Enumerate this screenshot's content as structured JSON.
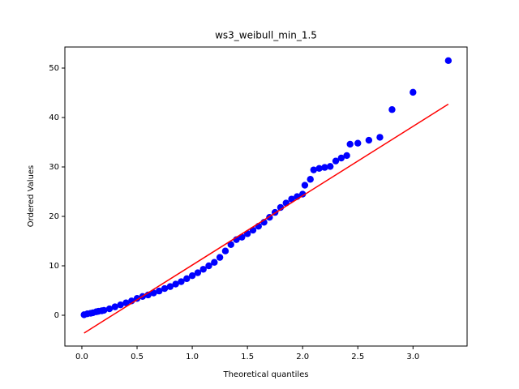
{
  "chart_data": {
    "type": "scatter",
    "title": "ws3_weibull_min_1.5",
    "x_label": "Theoretical quantiles",
    "y_label": "Ordered Values",
    "xlim": [
      -0.154,
      3.49
    ],
    "ylim": [
      -6.23,
      54.26
    ],
    "xticks": [
      {
        "value": 0,
        "label": "0.0"
      },
      0.5,
      {
        "value": 1,
        "label": "1.0"
      },
      1.5,
      {
        "value": 2,
        "label": "2.0"
      },
      2.5,
      {
        "value": 3,
        "label": "3.0"
      }
    ],
    "yticks": [
      0,
      10,
      20,
      30,
      40,
      50
    ],
    "series": [
      {
        "type": "scatter",
        "color": "#0000ff",
        "x": [
          0.02,
          0.05,
          0.08,
          0.1,
          0.13,
          0.15,
          0.18,
          0.2,
          0.25,
          0.3,
          0.35,
          0.4,
          0.45,
          0.5,
          0.55,
          0.6,
          0.65,
          0.7,
          0.75,
          0.8,
          0.85,
          0.9,
          0.95,
          1.0,
          1.05,
          1.1,
          1.15,
          1.2,
          1.25,
          1.3,
          1.35,
          1.4,
          1.45,
          1.5,
          1.55,
          1.6,
          1.65,
          1.7,
          1.75,
          1.8,
          1.85,
          1.9,
          1.95,
          2.0,
          2.02,
          2.07,
          2.1,
          2.15,
          2.2,
          2.25,
          2.3,
          2.35,
          2.4,
          2.43,
          2.5,
          2.6,
          2.7,
          2.81,
          3.0,
          3.32
        ],
        "values": [
          0.1,
          0.3,
          0.4,
          0.5,
          0.7,
          0.8,
          0.9,
          1.0,
          1.3,
          1.7,
          2.1,
          2.5,
          2.9,
          3.4,
          3.8,
          4.1,
          4.5,
          4.9,
          5.4,
          5.8,
          6.3,
          6.8,
          7.4,
          8.0,
          8.6,
          9.3,
          10.0,
          10.7,
          11.7,
          13.0,
          14.3,
          15.3,
          15.8,
          16.5,
          17.2,
          18.0,
          18.8,
          19.8,
          20.8,
          21.8,
          22.7,
          23.5,
          24.0,
          24.5,
          26.3,
          27.5,
          29.4,
          29.7,
          29.9,
          30.1,
          31.2,
          31.8,
          32.3,
          34.6,
          34.8,
          35.4,
          36.0,
          41.6,
          45.1,
          51.5
        ]
      },
      {
        "type": "line",
        "color": "#ff0000",
        "x": [
          0.02,
          3.32
        ],
        "values": [
          -3.6,
          42.7
        ]
      }
    ]
  }
}
